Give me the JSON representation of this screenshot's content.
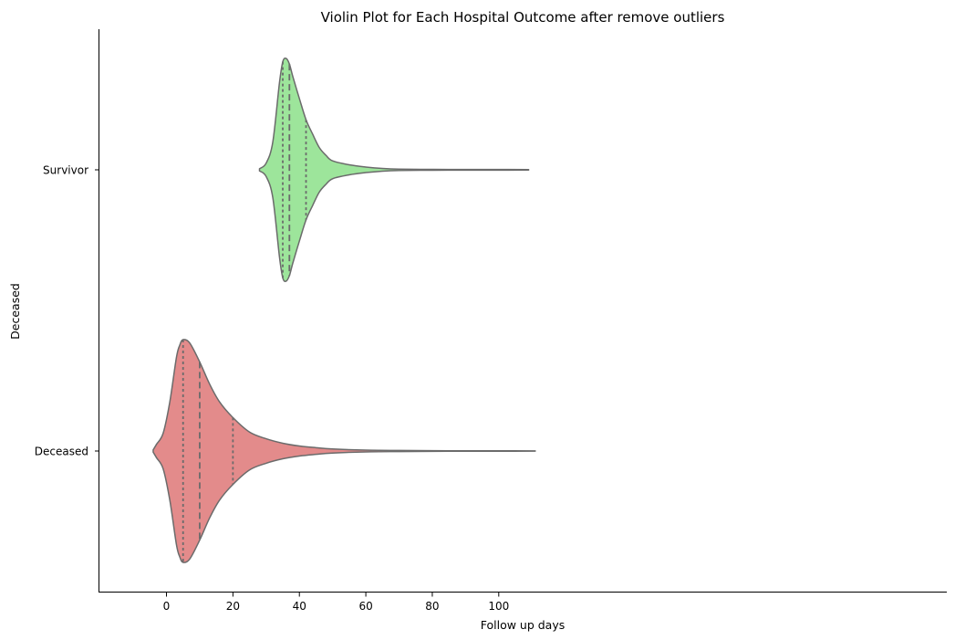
{
  "chart_data": {
    "type": "violin",
    "orientation": "horizontal",
    "title": "Violin Plot for Each Hospital Outcome after remove outliers",
    "xlabel": "Follow up days",
    "ylabel": "Deceased",
    "xlim": [
      -10,
      112
    ],
    "xticks": [
      0,
      20,
      40,
      60,
      80,
      100
    ],
    "grid": false,
    "categories": [
      "Survivor",
      "Deceased"
    ],
    "series": [
      {
        "category": "Survivor",
        "color": "#9de59b",
        "min": 28,
        "max": 109,
        "quartiles": [
          35,
          37,
          42
        ],
        "density": [
          [
            28,
            0.01
          ],
          [
            30,
            0.06
          ],
          [
            32,
            0.25
          ],
          [
            34,
            0.78
          ],
          [
            35,
            0.97
          ],
          [
            36,
            1.0
          ],
          [
            37,
            0.95
          ],
          [
            38,
            0.84
          ],
          [
            40,
            0.64
          ],
          [
            42,
            0.45
          ],
          [
            44,
            0.32
          ],
          [
            46,
            0.2
          ],
          [
            48,
            0.13
          ],
          [
            50,
            0.08
          ],
          [
            55,
            0.045
          ],
          [
            60,
            0.025
          ],
          [
            65,
            0.012
          ],
          [
            70,
            0.006
          ],
          [
            80,
            0.004
          ],
          [
            90,
            0.003
          ],
          [
            100,
            0.003
          ],
          [
            109,
            0.002
          ]
        ]
      },
      {
        "category": "Deceased",
        "color": "#e38b8b",
        "min": -4,
        "max": 111,
        "quartiles": [
          5,
          10,
          20
        ],
        "density": [
          [
            -4,
            0.01
          ],
          [
            -3,
            0.06
          ],
          [
            -1,
            0.16
          ],
          [
            1,
            0.44
          ],
          [
            3,
            0.84
          ],
          [
            4,
            0.95
          ],
          [
            5,
            1.0
          ],
          [
            7,
            0.97
          ],
          [
            10,
            0.8
          ],
          [
            13,
            0.6
          ],
          [
            16,
            0.44
          ],
          [
            20,
            0.3
          ],
          [
            25,
            0.17
          ],
          [
            30,
            0.11
          ],
          [
            35,
            0.07
          ],
          [
            40,
            0.045
          ],
          [
            45,
            0.03
          ],
          [
            50,
            0.018
          ],
          [
            60,
            0.008
          ],
          [
            70,
            0.005
          ],
          [
            80,
            0.003
          ],
          [
            90,
            0.002
          ],
          [
            100,
            0.002
          ],
          [
            111,
            0.001
          ]
        ]
      }
    ]
  }
}
